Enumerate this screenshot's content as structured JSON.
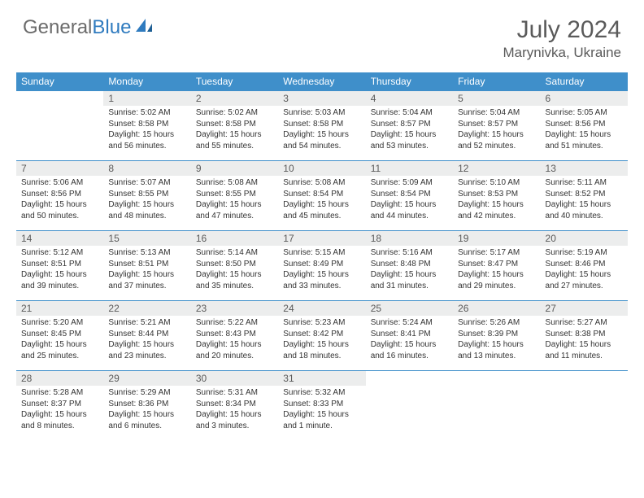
{
  "logo": {
    "gray": "General",
    "blue": "Blue"
  },
  "title": "July 2024",
  "location": "Marynivka, Ukraine",
  "colors": {
    "header_bg": "#3f8fca",
    "header_text": "#ffffff",
    "daynum_bg": "#eceded",
    "border": "#3f8fca",
    "logo_gray": "#6b6b6b",
    "logo_blue": "#2f7bbf",
    "title_color": "#5a5a5a"
  },
  "weekdays": [
    "Sunday",
    "Monday",
    "Tuesday",
    "Wednesday",
    "Thursday",
    "Friday",
    "Saturday"
  ],
  "weeks": [
    [
      null,
      {
        "n": "1",
        "sr": "5:02 AM",
        "ss": "8:58 PM",
        "dl": "15 hours and 56 minutes."
      },
      {
        "n": "2",
        "sr": "5:02 AM",
        "ss": "8:58 PM",
        "dl": "15 hours and 55 minutes."
      },
      {
        "n": "3",
        "sr": "5:03 AM",
        "ss": "8:58 PM",
        "dl": "15 hours and 54 minutes."
      },
      {
        "n": "4",
        "sr": "5:04 AM",
        "ss": "8:57 PM",
        "dl": "15 hours and 53 minutes."
      },
      {
        "n": "5",
        "sr": "5:04 AM",
        "ss": "8:57 PM",
        "dl": "15 hours and 52 minutes."
      },
      {
        "n": "6",
        "sr": "5:05 AM",
        "ss": "8:56 PM",
        "dl": "15 hours and 51 minutes."
      }
    ],
    [
      {
        "n": "7",
        "sr": "5:06 AM",
        "ss": "8:56 PM",
        "dl": "15 hours and 50 minutes."
      },
      {
        "n": "8",
        "sr": "5:07 AM",
        "ss": "8:55 PM",
        "dl": "15 hours and 48 minutes."
      },
      {
        "n": "9",
        "sr": "5:08 AM",
        "ss": "8:55 PM",
        "dl": "15 hours and 47 minutes."
      },
      {
        "n": "10",
        "sr": "5:08 AM",
        "ss": "8:54 PM",
        "dl": "15 hours and 45 minutes."
      },
      {
        "n": "11",
        "sr": "5:09 AM",
        "ss": "8:54 PM",
        "dl": "15 hours and 44 minutes."
      },
      {
        "n": "12",
        "sr": "5:10 AM",
        "ss": "8:53 PM",
        "dl": "15 hours and 42 minutes."
      },
      {
        "n": "13",
        "sr": "5:11 AM",
        "ss": "8:52 PM",
        "dl": "15 hours and 40 minutes."
      }
    ],
    [
      {
        "n": "14",
        "sr": "5:12 AM",
        "ss": "8:51 PM",
        "dl": "15 hours and 39 minutes."
      },
      {
        "n": "15",
        "sr": "5:13 AM",
        "ss": "8:51 PM",
        "dl": "15 hours and 37 minutes."
      },
      {
        "n": "16",
        "sr": "5:14 AM",
        "ss": "8:50 PM",
        "dl": "15 hours and 35 minutes."
      },
      {
        "n": "17",
        "sr": "5:15 AM",
        "ss": "8:49 PM",
        "dl": "15 hours and 33 minutes."
      },
      {
        "n": "18",
        "sr": "5:16 AM",
        "ss": "8:48 PM",
        "dl": "15 hours and 31 minutes."
      },
      {
        "n": "19",
        "sr": "5:17 AM",
        "ss": "8:47 PM",
        "dl": "15 hours and 29 minutes."
      },
      {
        "n": "20",
        "sr": "5:19 AM",
        "ss": "8:46 PM",
        "dl": "15 hours and 27 minutes."
      }
    ],
    [
      {
        "n": "21",
        "sr": "5:20 AM",
        "ss": "8:45 PM",
        "dl": "15 hours and 25 minutes."
      },
      {
        "n": "22",
        "sr": "5:21 AM",
        "ss": "8:44 PM",
        "dl": "15 hours and 23 minutes."
      },
      {
        "n": "23",
        "sr": "5:22 AM",
        "ss": "8:43 PM",
        "dl": "15 hours and 20 minutes."
      },
      {
        "n": "24",
        "sr": "5:23 AM",
        "ss": "8:42 PM",
        "dl": "15 hours and 18 minutes."
      },
      {
        "n": "25",
        "sr": "5:24 AM",
        "ss": "8:41 PM",
        "dl": "15 hours and 16 minutes."
      },
      {
        "n": "26",
        "sr": "5:26 AM",
        "ss": "8:39 PM",
        "dl": "15 hours and 13 minutes."
      },
      {
        "n": "27",
        "sr": "5:27 AM",
        "ss": "8:38 PM",
        "dl": "15 hours and 11 minutes."
      }
    ],
    [
      {
        "n": "28",
        "sr": "5:28 AM",
        "ss": "8:37 PM",
        "dl": "15 hours and 8 minutes."
      },
      {
        "n": "29",
        "sr": "5:29 AM",
        "ss": "8:36 PM",
        "dl": "15 hours and 6 minutes."
      },
      {
        "n": "30",
        "sr": "5:31 AM",
        "ss": "8:34 PM",
        "dl": "15 hours and 3 minutes."
      },
      {
        "n": "31",
        "sr": "5:32 AM",
        "ss": "8:33 PM",
        "dl": "15 hours and 1 minute."
      },
      null,
      null,
      null
    ]
  ],
  "labels": {
    "sunrise": "Sunrise:",
    "sunset": "Sunset:",
    "daylight": "Daylight:"
  }
}
